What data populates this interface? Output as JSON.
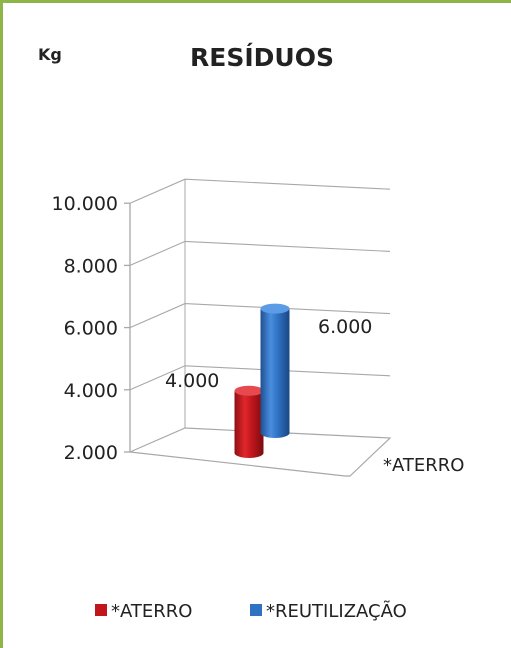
{
  "chart_data": {
    "type": "bar",
    "title": "RESÍDUOS",
    "ylabel": "Kg",
    "categories": [
      "*ATERRO"
    ],
    "series": [
      {
        "name": "*ATERRO",
        "values": [
          4000
        ],
        "label": "4.000",
        "color": "#c0161c"
      },
      {
        "name": "*REUTILIZAÇÃO",
        "values": [
          6000
        ],
        "label": "6.000",
        "color": "#2f72c4"
      }
    ],
    "ylim": [
      2000,
      10000
    ],
    "yticks": [
      {
        "value": 2000,
        "label": "2.000"
      },
      {
        "value": 4000,
        "label": "4.000"
      },
      {
        "value": 6000,
        "label": "6.000"
      },
      {
        "value": 8000,
        "label": "8.000"
      },
      {
        "value": 10000,
        "label": "10.000"
      }
    ],
    "grid": true,
    "legend": "bottom",
    "style": "3d-cylinder"
  },
  "colors": {
    "frame": "#8db548",
    "grid": "#a8a8a8"
  }
}
